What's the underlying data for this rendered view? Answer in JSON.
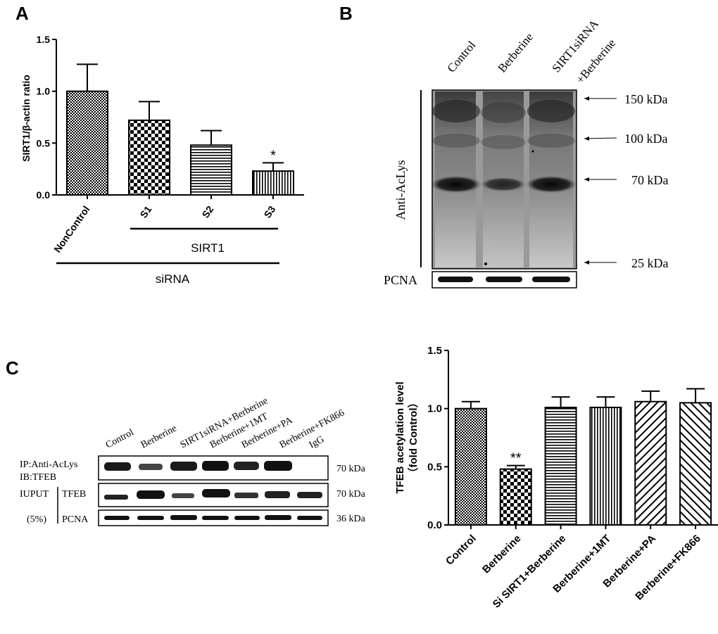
{
  "panels": {
    "a": {
      "letter": "A",
      "ylabel": "SIRT1/β-actin ratio",
      "group_sirt1": "SIRT1",
      "group_sirna": "siRNA",
      "significance": "*"
    },
    "b": {
      "letter": "B",
      "lanes": [
        "Control",
        "Berberine",
        "SIRT1siRNA",
        "+Berberine"
      ],
      "antibody": "Anti-AcLys",
      "loading": "PCNA",
      "markers": [
        "150 kDa",
        "100 kDa",
        "70 kDa",
        "25 kDa"
      ]
    },
    "c": {
      "letter": "C",
      "lanes": [
        "Control",
        "Berberine",
        "SIRT1siRNA+Berberine",
        "Berberine+1MT",
        "Berberine+PA",
        "Berberine+FK866",
        "IgG"
      ],
      "row1_label": [
        "IP:Anti-AcLys",
        "IB:TFEB"
      ],
      "input_label": "IUPUT",
      "input_pct": "(5%)",
      "tfeb_label": "TFEB",
      "pcna_label": "PCNA",
      "sizes": [
        "70 kDa",
        "70 kDa",
        "36 kDa"
      ],
      "ylabel_1": "TFEB acetylation level",
      "ylabel_2": "（fold Control）",
      "significance": "**"
    }
  },
  "chart_data": [
    {
      "type": "bar",
      "categories": [
        "NonControl",
        "S1",
        "S2",
        "S3"
      ],
      "values": [
        1.0,
        0.72,
        0.48,
        0.23
      ],
      "errors": [
        0.26,
        0.18,
        0.14,
        0.08
      ],
      "ylabel": "SIRT1/β-actin ratio",
      "ylim": [
        0,
        1.5
      ],
      "yticks": [
        "0.0",
        "0.5",
        "1.0",
        "1.5"
      ],
      "annotations": [
        {
          "category": "S3",
          "text": "*"
        }
      ]
    },
    {
      "type": "bar",
      "categories": [
        "Control",
        "Berberine",
        "Si SIRT1+Berberine",
        "Berberine+1MT",
        "Berberine+PA",
        "Berberine+FK866"
      ],
      "values": [
        1.0,
        0.48,
        1.01,
        1.01,
        1.06,
        1.05
      ],
      "errors": [
        0.06,
        0.03,
        0.09,
        0.09,
        0.09,
        0.12
      ],
      "ylabel": "TFEB acetylation level（fold Control）",
      "ylim": [
        0,
        1.5
      ],
      "yticks": [
        "0.0",
        "0.5",
        "1.0",
        "1.5"
      ],
      "annotations": [
        {
          "category": "Berberine",
          "text": "**"
        }
      ]
    }
  ]
}
